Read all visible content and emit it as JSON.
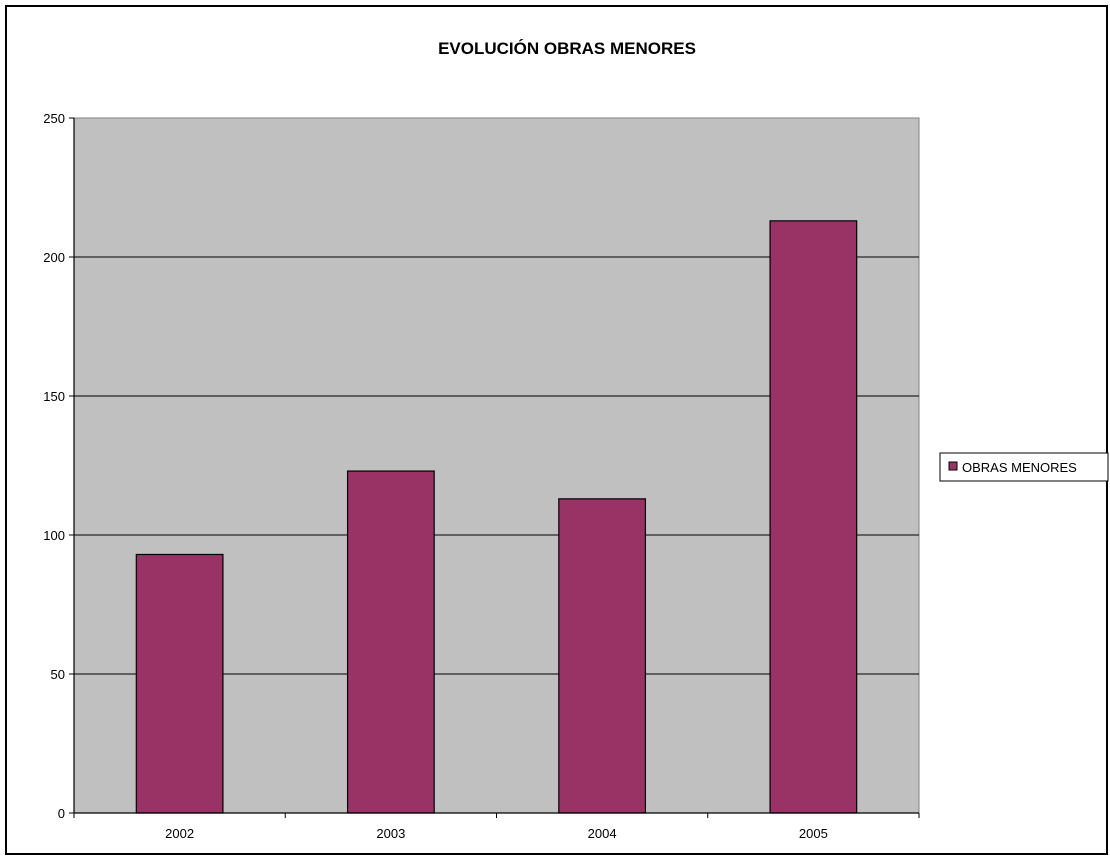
{
  "chart_data": {
    "type": "bar",
    "title": "EVOLUCIÓN OBRAS MENORES",
    "xlabel": "",
    "ylabel": "",
    "categories": [
      "2002",
      "2003",
      "2004",
      "2005"
    ],
    "series": [
      {
        "name": "OBRAS MENORES",
        "values": [
          93,
          123,
          113,
          213
        ],
        "color": "#993366"
      }
    ],
    "ylim": [
      0,
      250
    ],
    "yticks": [
      0,
      50,
      100,
      150,
      200,
      250
    ],
    "grid": true,
    "legend_position": "right",
    "plot_background": "#c0c0c0"
  }
}
